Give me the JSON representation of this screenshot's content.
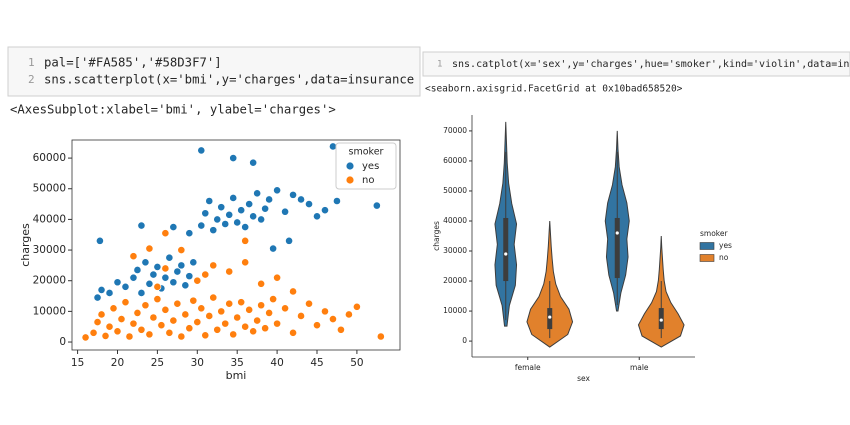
{
  "cells": [
    {
      "line_numbers": [
        "1",
        "2"
      ],
      "code": [
        "pal=['#FA585','#58D3F7']",
        "sns.scatterplot(x='bmi',y='charges',data=insurance"
      ],
      "output": "<AxesSubplot:xlabel='bmi', ylabel='charges'>"
    },
    {
      "line_numbers": [
        "1"
      ],
      "code": [
        "sns.catplot(x='sex',y='charges',hue='smoker',kind='violin',data=in"
      ],
      "output": "<seaborn.axisgrid.FacetGrid at 0x10bad658520>"
    }
  ],
  "chart_data": [
    {
      "type": "scatter",
      "x_label": "bmi",
      "y_label": "charges",
      "legend_title": "smoker",
      "legend": "upper right",
      "xlim": [
        14.3,
        55.4
      ],
      "ylim": [
        -2600,
        65900
      ],
      "xticks": [
        15,
        20,
        25,
        30,
        35,
        40,
        45,
        50
      ],
      "yticks": [
        0,
        10000,
        20000,
        30000,
        40000,
        50000,
        60000
      ],
      "series": [
        {
          "name": "yes",
          "color": "#1f77b4",
          "x": [
            17.5,
            18,
            17.8,
            19,
            20,
            21,
            22,
            22.5,
            23,
            23.5,
            24,
            24.5,
            25,
            25.5,
            26,
            26.5,
            27,
            27.5,
            28,
            28.5,
            29,
            29.5,
            23,
            27,
            29,
            30.5,
            31,
            31.5,
            32,
            32.5,
            33,
            33.5,
            34,
            34.5,
            35,
            35.5,
            36,
            36.5,
            37,
            37.5,
            38,
            38.5,
            39,
            40,
            41,
            42,
            43,
            44,
            45,
            46,
            47.5,
            30.5,
            34.5,
            37,
            47,
            52.5,
            39.5,
            41.5
          ],
          "values": [
            14500,
            17000,
            33000,
            16000,
            19500,
            18000,
            21000,
            23500,
            16000,
            26000,
            19000,
            22000,
            24500,
            17500,
            21000,
            27500,
            19500,
            23000,
            25000,
            18500,
            21500,
            26000,
            38000,
            37500,
            35500,
            38000,
            42000,
            46000,
            36500,
            40000,
            44000,
            38500,
            41500,
            47000,
            39000,
            43000,
            37500,
            45000,
            41000,
            48500,
            40000,
            43500,
            46500,
            49500,
            42500,
            48000,
            46500,
            45000,
            41000,
            43000,
            46000,
            62500,
            60000,
            58500,
            63800,
            44500,
            30500,
            33000
          ]
        },
        {
          "name": "no",
          "color": "#ff7f0e",
          "x": [
            16,
            17,
            17.5,
            18,
            18.5,
            19,
            19.5,
            20,
            20.5,
            21,
            21.5,
            22,
            22.5,
            23,
            23.5,
            24,
            24.5,
            25,
            25.5,
            26,
            26.5,
            27,
            27.5,
            28,
            28.5,
            29,
            29.5,
            30,
            30.5,
            31,
            31.5,
            32,
            32.5,
            33,
            33.5,
            34,
            34.5,
            35,
            35.5,
            36,
            36.5,
            37,
            37.5,
            38,
            38.5,
            39,
            39.5,
            40,
            41,
            42,
            43,
            44,
            45,
            46,
            47,
            48,
            49,
            50,
            53,
            22,
            24,
            26,
            28,
            30,
            32,
            34,
            36,
            38,
            40,
            26,
            25,
            36,
            42,
            31
          ],
          "values": [
            1500,
            3000,
            6500,
            9000,
            2000,
            5000,
            11000,
            3500,
            7500,
            13000,
            1800,
            6000,
            9500,
            4000,
            12000,
            2500,
            8000,
            14000,
            5500,
            10500,
            3000,
            7000,
            12500,
            1800,
            9000,
            4500,
            13500,
            6500,
            11000,
            2200,
            8500,
            14500,
            4000,
            10000,
            6000,
            12500,
            2500,
            8000,
            13000,
            5000,
            10500,
            3500,
            7000,
            12000,
            4500,
            9500,
            14000,
            6000,
            11000,
            3000,
            8500,
            12500,
            5500,
            10000,
            7500,
            4000,
            9000,
            11500,
            1800,
            28000,
            30500,
            24000,
            30000,
            20000,
            25000,
            23000,
            26000,
            19000,
            21000,
            35500,
            18000,
            33000,
            16500,
            22000
          ]
        }
      ]
    },
    {
      "type": "violin",
      "x_label": "sex",
      "y_label": "charges",
      "legend_title": "smoker",
      "legend": "right outside",
      "categories": [
        "female",
        "male"
      ],
      "ylim": [
        -5300,
        75300
      ],
      "yticks": [
        0,
        10000,
        20000,
        30000,
        40000,
        50000,
        60000,
        70000
      ],
      "series": [
        {
          "name": "yes",
          "color": "#3274a1",
          "values": [
            {
              "min": 5000,
              "max": 73000,
              "q1": 20000,
              "median": 29000,
              "q3": 41000,
              "whisker_low": 7000,
              "whisker_high": 63000,
              "density": [
                0.05,
                0.15,
                0.4,
                0.45,
                0.35,
                0.45,
                0.25,
                0.12,
                0.06,
                0.03,
                0
              ]
            },
            {
              "min": 10000,
              "max": 70000,
              "q1": 21000,
              "median": 36000,
              "q3": 41000,
              "whisker_low": 12000,
              "whisker_high": 63000,
              "density": [
                0.03,
                0.15,
                0.35,
                0.45,
                0.4,
                0.5,
                0.4,
                0.2,
                0.08,
                0.03,
                0
              ]
            }
          ]
        },
        {
          "name": "no",
          "color": "#e1812c",
          "values": [
            {
              "min": -2000,
              "max": 40000,
              "q1": 4000,
              "median": 8000,
              "q3": 11000,
              "whisker_low": 1000,
              "whisker_high": 20000,
              "density": [
                0,
                0.75,
                0.95,
                0.8,
                0.45,
                0.25,
                0.15,
                0.1,
                0.06,
                0.03,
                0
              ]
            },
            {
              "min": -2000,
              "max": 35000,
              "q1": 4000,
              "median": 7000,
              "q3": 11000,
              "whisker_low": 1000,
              "whisker_high": 20000,
              "density": [
                0,
                0.8,
                0.95,
                0.7,
                0.4,
                0.2,
                0.12,
                0.08,
                0.05,
                0.02,
                0
              ]
            }
          ]
        }
      ]
    }
  ]
}
